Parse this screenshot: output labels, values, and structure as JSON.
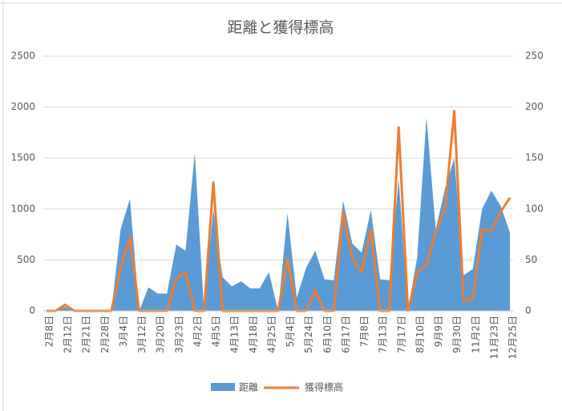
{
  "chart_data": {
    "type": "area_line",
    "title": "距離と獲得標高",
    "categories": [
      "2月8日",
      null,
      "2月12日",
      null,
      "2月21日",
      null,
      "2月28日",
      null,
      "3月4日",
      null,
      "3月12日",
      null,
      "3月20日",
      null,
      "3月23日",
      null,
      "4月2日",
      null,
      "4月5日",
      null,
      "4月13日",
      null,
      "4月18日",
      null,
      "4月25日",
      null,
      "5月4日",
      null,
      "5月24日",
      null,
      "6月10日",
      null,
      "6月17日",
      null,
      "7月8日",
      null,
      "7月13日",
      null,
      "7月17日",
      null,
      "8月10日",
      null,
      "9月9日",
      null,
      "9月30日",
      null,
      "11月2日",
      null,
      "11月23日",
      null,
      "12月25日"
    ],
    "series": [
      {
        "name": "距離",
        "color": "#5b9bd5",
        "axis": "y",
        "values": [
          0,
          0,
          40,
          0,
          0,
          0,
          0,
          0,
          800,
          1100,
          0,
          230,
          170,
          170,
          650,
          590,
          1550,
          0,
          1000,
          330,
          240,
          290,
          220,
          220,
          380,
          0,
          960,
          130,
          420,
          590,
          310,
          300,
          1080,
          660,
          570,
          990,
          310,
          300,
          1300,
          0,
          530,
          1900,
          800,
          1200,
          1500,
          350,
          410,
          1000,
          1180,
          1030,
          770
        ]
      },
      {
        "name": "獲得標高",
        "color": "#ed7d31",
        "axis": "y2",
        "values": [
          0,
          0,
          6,
          0,
          0,
          0,
          0,
          0,
          42,
          72,
          0,
          0,
          0,
          0,
          32,
          38,
          0,
          0,
          126,
          0,
          0,
          0,
          0,
          0,
          0,
          0,
          51,
          0,
          0,
          20,
          0,
          0,
          97,
          52,
          38,
          80,
          0,
          0,
          180,
          0,
          38,
          45,
          78,
          100,
          196,
          10,
          12,
          80,
          78,
          97,
          111
        ]
      }
    ],
    "ylim": [
      0,
      2500
    ],
    "yticks": [
      0,
      500,
      1000,
      1500,
      2000,
      2500
    ],
    "y2lim": [
      0,
      250
    ],
    "y2ticks": [
      0,
      50,
      100,
      150,
      200,
      250
    ],
    "grid": true,
    "legend": "bottom"
  }
}
